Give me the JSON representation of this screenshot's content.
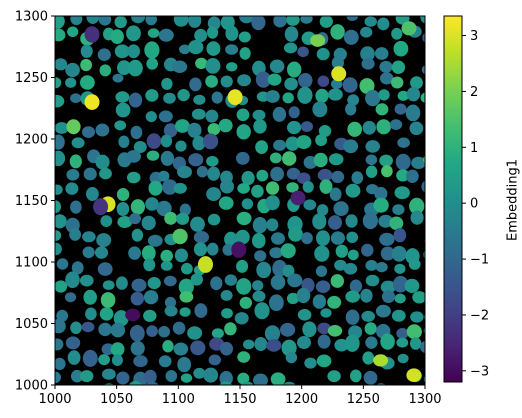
{
  "chart_data": {
    "type": "heatmap",
    "title": "",
    "xlabel": "",
    "ylabel": "",
    "xlim": [
      1000,
      1300
    ],
    "ylim": [
      1000,
      1300
    ],
    "x_ticks": [
      "1000",
      "1050",
      "1100",
      "1150",
      "1200",
      "1250",
      "1300"
    ],
    "y_ticks": [
      "1000",
      "1050",
      "1100",
      "1150",
      "1200",
      "1250",
      "1300"
    ],
    "background": "#000000",
    "colormap": "viridis",
    "colorbar": {
      "label": "Embedding1",
      "range": [
        -3.2,
        3.35
      ],
      "ticks": [
        "−3",
        "−2",
        "−1",
        "0",
        "1",
        "2",
        "3"
      ],
      "tick_values": [
        -3,
        -2,
        -1,
        0,
        1,
        2,
        3
      ]
    },
    "highlighted_cells": [
      {
        "x": 1030,
        "y": 1230,
        "value": 3.2
      },
      {
        "x": 1146,
        "y": 1234,
        "value": 3.1
      },
      {
        "x": 1230,
        "y": 1253,
        "value": 3.0
      },
      {
        "x": 1043,
        "y": 1147,
        "value": 3.0
      },
      {
        "x": 1122,
        "y": 1098,
        "value": 2.8
      },
      {
        "x": 1063,
        "y": 1057,
        "value": -3.0
      },
      {
        "x": 1149,
        "y": 1110,
        "value": -2.9
      },
      {
        "x": 1291,
        "y": 1008,
        "value": 2.9
      },
      {
        "x": 1264,
        "y": 1020,
        "value": 2.5
      },
      {
        "x": 1287,
        "y": 1290,
        "value": 1.5
      },
      {
        "x": 1213,
        "y": 1280,
        "value": 2.0
      },
      {
        "x": 1197,
        "y": 1152,
        "value": -2.6
      },
      {
        "x": 1037,
        "y": 1145,
        "value": -2.2
      },
      {
        "x": 1030,
        "y": 1285,
        "value": -2.3
      }
    ]
  }
}
